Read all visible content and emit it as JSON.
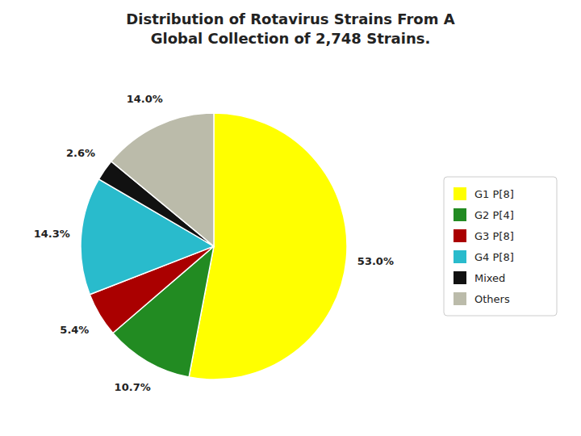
{
  "chart_data": {
    "type": "pie",
    "title": "Distribution of Rotavirus Strains From A",
    "subtitle": "Global Collection of 2,748 Strains.",
    "categories": [
      "G1 P[8]",
      "G2 P[4]",
      "G3 P[8]",
      "G4 P[8]",
      "Mixed",
      "Others"
    ],
    "values": [
      53.0,
      10.7,
      5.4,
      14.3,
      2.6,
      14.0
    ],
    "value_labels": [
      "53.0%",
      "10.7%",
      "5.4%",
      "14.3%",
      "2.6%",
      "14.0%"
    ],
    "colors": [
      "#FFFF00",
      "#228B22",
      "#AA0000",
      "#29BBCC",
      "#111111",
      "#BBBBAA"
    ],
    "data_labels": true,
    "legend": "right"
  }
}
